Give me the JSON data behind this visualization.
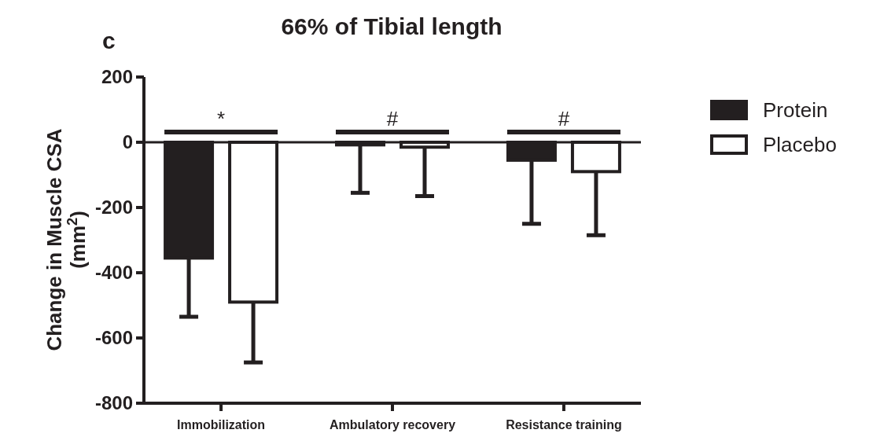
{
  "chart_data": {
    "type": "bar",
    "title": "66% of Tibial length",
    "ylabel": "Change in Muscle CSA (mm$^{2}$)",
    "categories": [
      "Immobilization",
      "Ambulatory recovery",
      "Resistance training"
    ],
    "series": [
      {
        "name": "Protein",
        "color": "#231f20",
        "values": [
          -355,
          -8,
          -55
        ],
        "errors": [
          [
            -535,
            -355
          ],
          [
            -155,
            -8
          ],
          [
            -250,
            -55
          ]
        ]
      },
      {
        "name": "Placebo",
        "color": "#ffffff",
        "values": [
          -490,
          -15,
          -90
        ],
        "errors": [
          [
            -675,
            -490
          ],
          [
            -165,
            -15
          ],
          [
            -285,
            -90
          ]
        ]
      }
    ],
    "ylim": [
      -800,
      200
    ],
    "yticks": [
      -800,
      -600,
      -400,
      -200,
      0,
      200
    ],
    "legend": "right",
    "annotations": [
      "c",
      "*",
      "#",
      "#"
    ]
  }
}
